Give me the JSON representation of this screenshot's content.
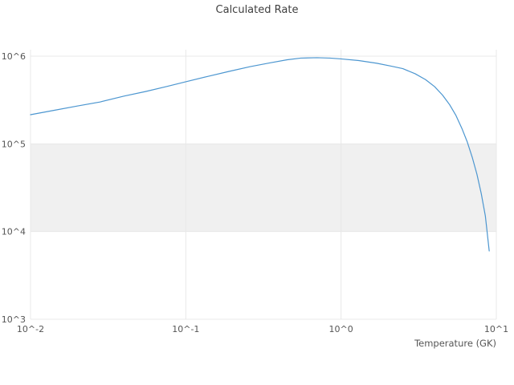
{
  "chart_data": {
    "type": "line",
    "title": "Calculated Rate",
    "xlabel": "Temperature (GK)",
    "ylabel": "",
    "xscale": "log",
    "yscale": "log",
    "xlim": [
      0.01,
      10
    ],
    "ylim": [
      1000,
      1000000
    ],
    "grid": true,
    "legend": "none",
    "line_color": "#4c96d0",
    "grid_color": "#e8e8e8",
    "band": {
      "from": 10000,
      "to": 100000,
      "color": "#f0f0f0"
    },
    "xticks": [
      {
        "value": 0.01,
        "label": "10^-2"
      },
      {
        "value": 0.1,
        "label": "10^-1"
      },
      {
        "value": 1,
        "label": "10^0"
      },
      {
        "value": 10,
        "label": "10^1"
      }
    ],
    "yticks": [
      {
        "value": 1000,
        "label": "10^3"
      },
      {
        "value": 10000,
        "label": "10^4"
      },
      {
        "value": 100000,
        "label": "10^5"
      },
      {
        "value": 1000000,
        "label": "10^6"
      }
    ],
    "series": [
      {
        "name": "calculated-rate",
        "x": [
          0.01,
          0.014,
          0.02,
          0.028,
          0.04,
          0.055,
          0.075,
          0.1,
          0.14,
          0.19,
          0.26,
          0.35,
          0.45,
          0.55,
          0.7,
          0.85,
          1.0,
          1.3,
          1.7,
          2.1,
          2.5,
          3.0,
          3.5,
          4.0,
          4.5,
          5.0,
          5.5,
          6.0,
          6.5,
          7.0,
          7.5,
          8.0,
          8.5,
          9.0
        ],
        "y": [
          215000,
          240000,
          270000,
          300000,
          350000,
          395000,
          450000,
          510000,
          590000,
          670000,
          760000,
          840000,
          910000,
          950000,
          960000,
          950000,
          930000,
          890000,
          830000,
          770000,
          720000,
          630000,
          540000,
          450000,
          360000,
          280000,
          210000,
          150000,
          105000,
          70000,
          45000,
          27000,
          15000,
          6000
        ]
      }
    ]
  }
}
